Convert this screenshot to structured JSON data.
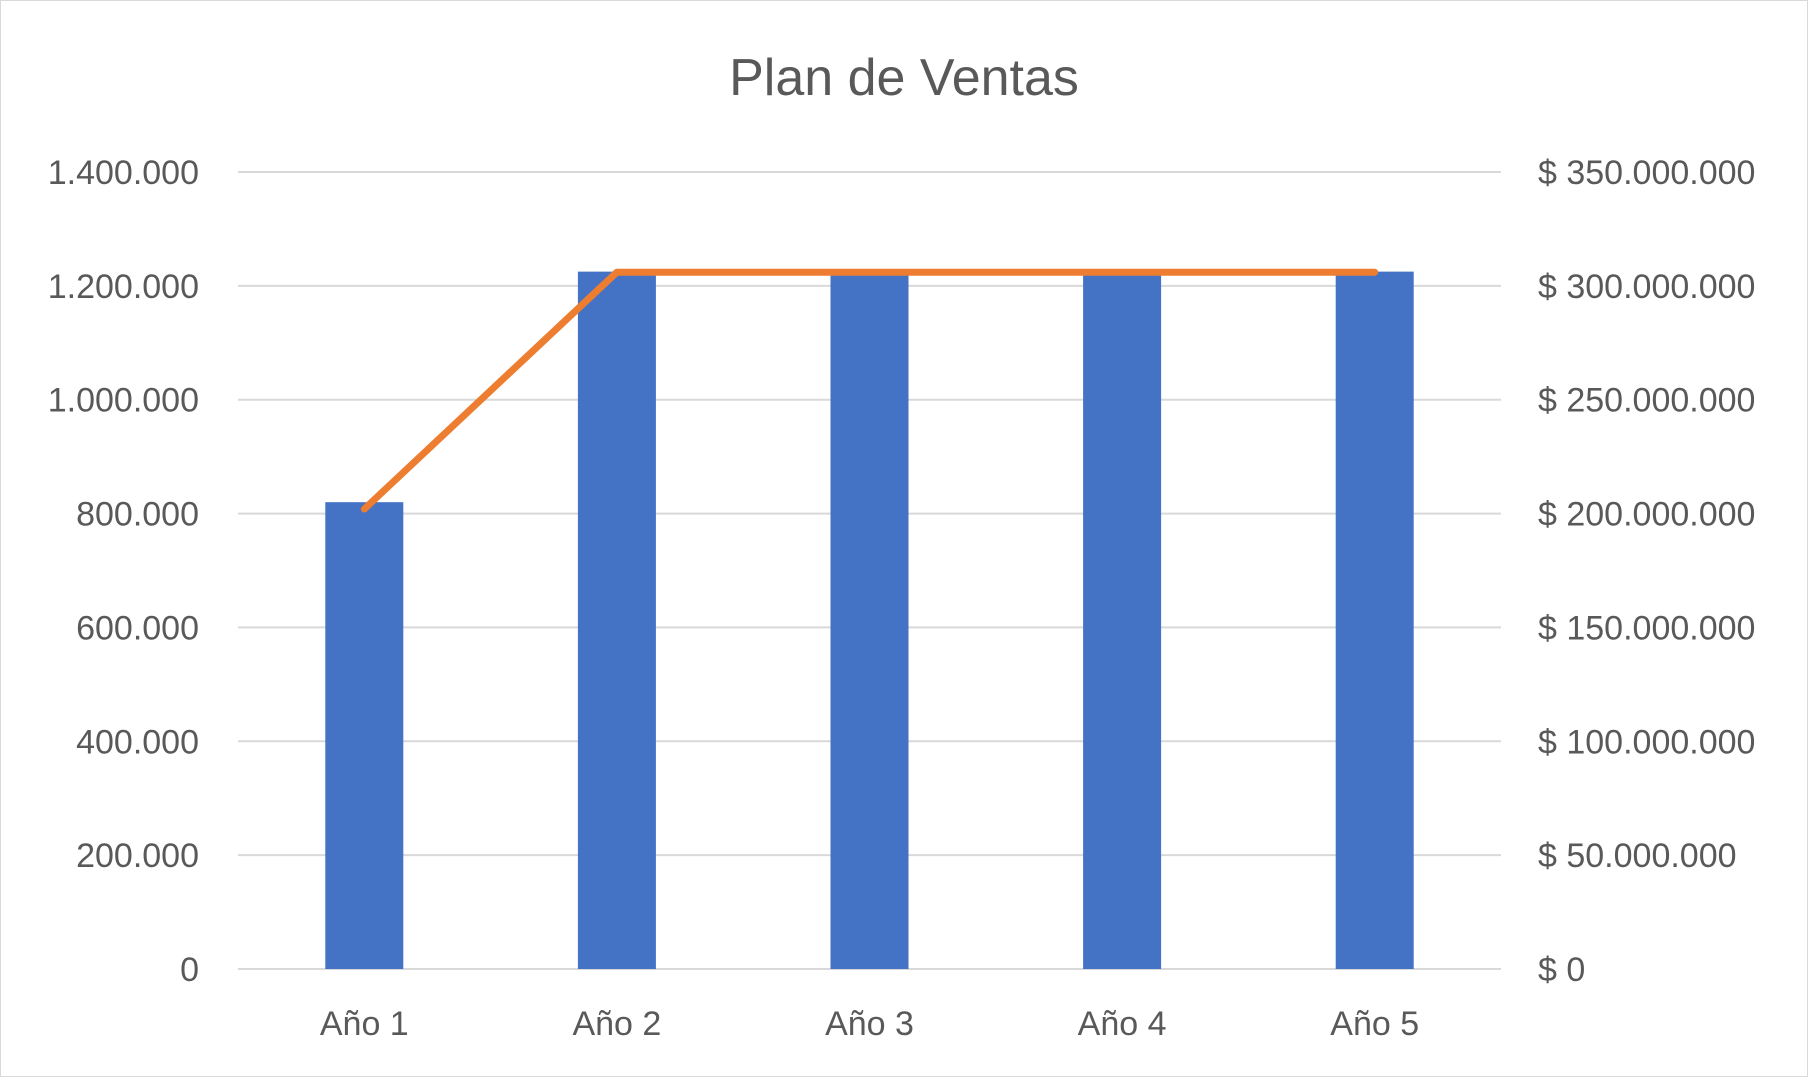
{
  "chart_data": {
    "type": "bar",
    "title": "Plan de Ventas",
    "categories": [
      "Año 1",
      "Año 2",
      "Año 3",
      "Año 4",
      "Año 5"
    ],
    "series": [
      {
        "type": "bar",
        "axis": "left",
        "color": "#4472c4",
        "values": [
          820000,
          1225000,
          1225000,
          1225000,
          1225000
        ]
      },
      {
        "type": "line",
        "axis": "right",
        "color": "#ed7d31",
        "values": [
          202000000,
          306000000,
          306000000,
          306000000,
          306000000
        ]
      }
    ],
    "y_left": {
      "range": [
        0,
        1400000
      ],
      "ticks": [
        0,
        200000,
        400000,
        600000,
        800000,
        1000000,
        1200000,
        1400000
      ],
      "tick_labels": [
        "0",
        "200.000",
        "400.000",
        "600.000",
        "800.000",
        "1.000.000",
        "1.200.000",
        "1.400.000"
      ]
    },
    "y_right": {
      "range": [
        0,
        350000000
      ],
      "ticks": [
        0,
        50000000,
        100000000,
        150000000,
        200000000,
        250000000,
        300000000,
        350000000
      ],
      "tick_labels": [
        "$ 0",
        "$ 50.000.000",
        "$ 100.000.000",
        "$ 150.000.000",
        "$ 200.000.000",
        "$ 250.000.000",
        "$ 300.000.000",
        "$ 350.000.000"
      ]
    },
    "grid": true,
    "gridline_color": "#d9d9d9",
    "axis_text_color": "#595959",
    "legend": "none"
  }
}
